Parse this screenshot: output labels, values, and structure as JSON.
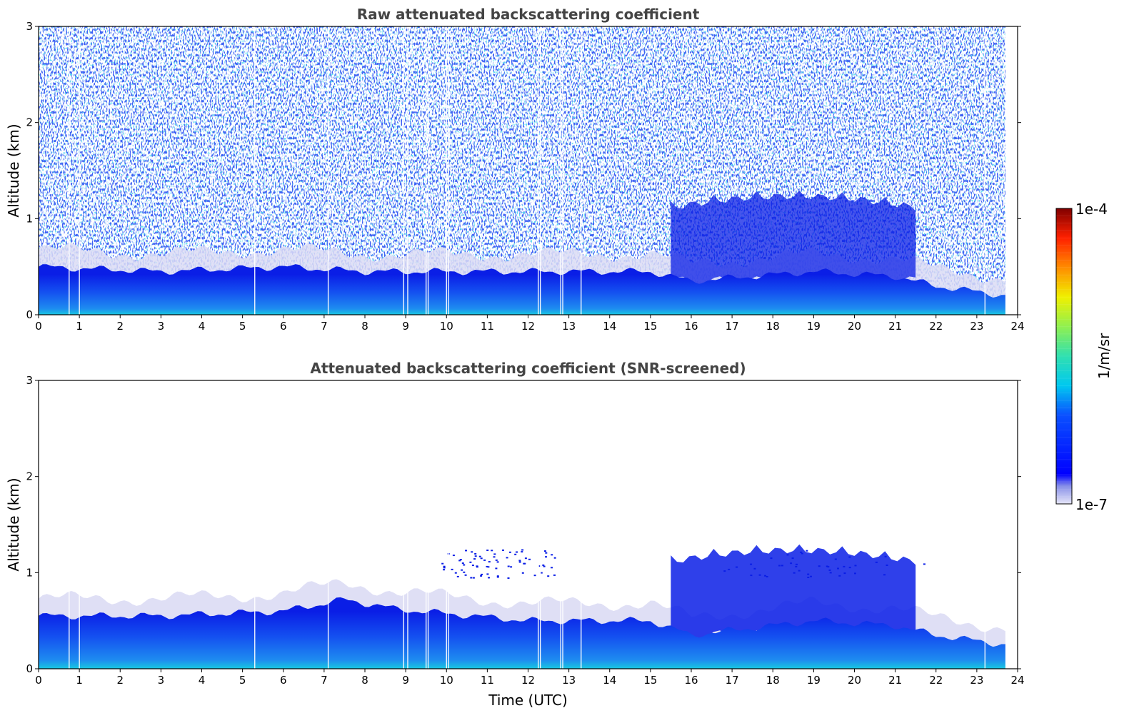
{
  "chart_data": [
    {
      "type": "heatmap",
      "title": "Raw attenuated backscattering coefficient",
      "xlabel": "",
      "ylabel": "Altitude (km)",
      "xlim": [
        0,
        24
      ],
      "ylim": [
        0,
        3
      ],
      "xticks": [
        "0",
        "1",
        "2",
        "3",
        "4",
        "5",
        "6",
        "7",
        "8",
        "9",
        "10",
        "11",
        "12",
        "13",
        "14",
        "15",
        "16",
        "17",
        "18",
        "19",
        "20",
        "21",
        "22",
        "23",
        "24"
      ],
      "yticks": [
        "0",
        "1",
        "2",
        "3"
      ],
      "data_end_hour": 23.7,
      "gap_hours": [
        0.75,
        1.0,
        5.3,
        7.1,
        8.95,
        9.05,
        9.5,
        9.55,
        10.0,
        10.05,
        12.25,
        12.3,
        12.8,
        12.85,
        13.3,
        23.2
      ],
      "boundary_layer_top_km": [
        {
          "hour": 0,
          "km": 0.5
        },
        {
          "hour": 3,
          "km": 0.45
        },
        {
          "hour": 6,
          "km": 0.5
        },
        {
          "hour": 8,
          "km": 0.45
        },
        {
          "hour": 12,
          "km": 0.45
        },
        {
          "hour": 15,
          "km": 0.45
        },
        {
          "hour": 16,
          "km": 0.35
        },
        {
          "hour": 19,
          "km": 0.45
        },
        {
          "hour": 21,
          "km": 0.4
        },
        {
          "hour": 22,
          "km": 0.3
        },
        {
          "hour": 23.7,
          "km": 0.2
        }
      ],
      "cloud_region": {
        "hour_start": 15.5,
        "hour_end": 21.5,
        "km_bottom": 0.35,
        "km_top": 1.3
      }
    },
    {
      "type": "heatmap",
      "title": "Attenuated backscattering coefficient (SNR-screened)",
      "xlabel": "Time (UTC)",
      "ylabel": "Altitude (km)",
      "xlim": [
        0,
        24
      ],
      "ylim": [
        0,
        3
      ],
      "xticks": [
        "0",
        "1",
        "2",
        "3",
        "4",
        "5",
        "6",
        "7",
        "8",
        "9",
        "10",
        "11",
        "12",
        "13",
        "14",
        "15",
        "16",
        "17",
        "18",
        "19",
        "20",
        "21",
        "22",
        "23",
        "24"
      ],
      "yticks": [
        "0",
        "1",
        "2",
        "3"
      ],
      "data_end_hour": 23.7,
      "gap_hours": [
        0.75,
        1.0,
        5.3,
        7.1,
        8.95,
        9.05,
        9.5,
        9.55,
        10.0,
        10.05,
        12.25,
        12.3,
        12.8,
        12.85,
        13.3,
        23.2
      ],
      "boundary_layer_top_km": [
        {
          "hour": 0,
          "km": 0.55
        },
        {
          "hour": 3,
          "km": 0.55
        },
        {
          "hour": 6,
          "km": 0.6
        },
        {
          "hour": 7.5,
          "km": 0.72
        },
        {
          "hour": 8.8,
          "km": 0.62
        },
        {
          "hour": 12,
          "km": 0.5
        },
        {
          "hour": 15,
          "km": 0.5
        },
        {
          "hour": 16,
          "km": 0.35
        },
        {
          "hour": 19,
          "km": 0.5
        },
        {
          "hour": 21,
          "km": 0.45
        },
        {
          "hour": 22,
          "km": 0.35
        },
        {
          "hour": 23.7,
          "km": 0.25
        }
      ],
      "cloud_region": {
        "hour_start": 15.5,
        "hour_end": 21.5,
        "km_bottom": 0.35,
        "km_top": 1.3
      }
    }
  ],
  "colorbar": {
    "max_label": "1e-4",
    "min_label": "1e-7",
    "unit_label": "1/m/sr",
    "scale": "log",
    "colormap": "jet"
  },
  "colors": {
    "low": "#e8e8f8",
    "mid_blue": "#0a1ee6",
    "light_blue": "#1e8cf0",
    "cyan": "#18c8e0"
  }
}
